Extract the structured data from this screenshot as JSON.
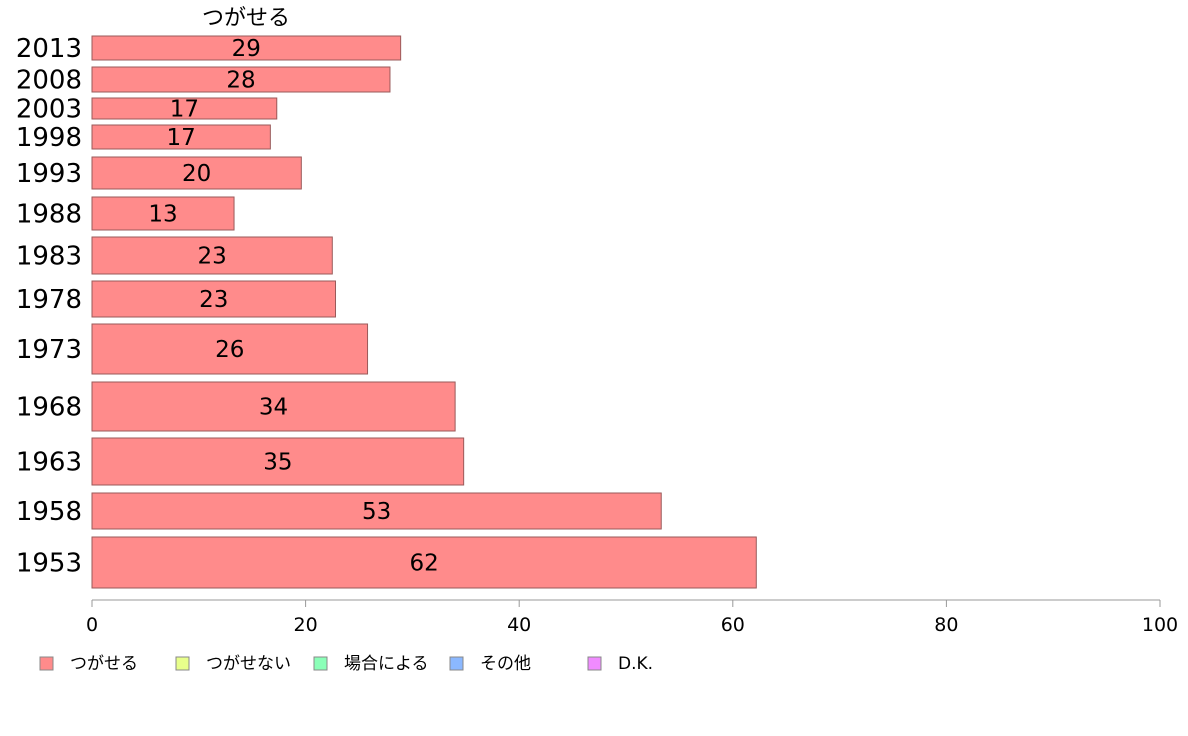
{
  "chart_data": {
    "type": "bar",
    "orientation": "horizontal",
    "title": "つがせる",
    "categories": [
      "2013",
      "2008",
      "2003",
      "1998",
      "1993",
      "1988",
      "1983",
      "1978",
      "1973",
      "1968",
      "1963",
      "1958",
      "1953"
    ],
    "series": [
      {
        "name": "つがせる",
        "color": "#ff8b8b",
        "values": [
          29,
          28,
          17,
          17,
          20,
          13,
          23,
          23,
          26,
          34,
          35,
          53,
          62
        ],
        "precise_values": [
          28.9,
          27.9,
          17.3,
          16.7,
          19.6,
          13.3,
          22.5,
          22.8,
          25.8,
          34.0,
          34.8,
          53.3,
          62.2
        ]
      }
    ],
    "xlim": [
      0,
      100
    ],
    "xticks": [
      0,
      20,
      40,
      60,
      80,
      100
    ],
    "grid": false,
    "legend": {
      "placement": "bottom-left",
      "items": [
        {
          "label": "つがせる",
          "color": "#ff8b8b"
        },
        {
          "label": "つがせない",
          "color": "#e8ff8b"
        },
        {
          "label": "場合による",
          "color": "#8bffb8"
        },
        {
          "label": "その他",
          "color": "#8bb8ff"
        },
        {
          "label": "D.K.",
          "color": "#f08bff"
        }
      ]
    }
  }
}
